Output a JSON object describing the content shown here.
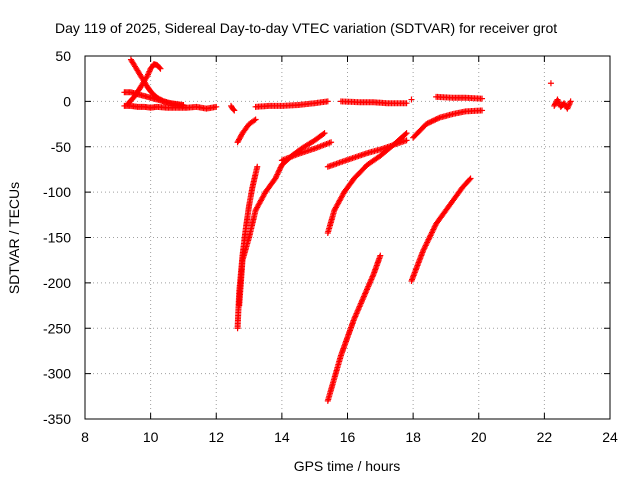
{
  "chart_data": {
    "type": "scatter",
    "title": "Day 119 of 2025, Sidereal Day-to-day VTEC variation (SDTVAR) for receiver grot",
    "xlabel": "GPS time / hours",
    "ylabel": "SDTVAR / TECUs",
    "xlim": [
      8,
      24
    ],
    "ylim": [
      -350,
      50
    ],
    "xticks": [
      "8",
      "10",
      "12",
      "14",
      "16",
      "18",
      "20",
      "22",
      "24"
    ],
    "yticks": [
      "50",
      "0",
      "-50",
      "-100",
      "-150",
      "-200",
      "-250",
      "-300",
      "-350"
    ],
    "grid": true,
    "marker": "+",
    "color": "#ff0000",
    "series": [
      {
        "x": [
          9.2,
          9.4,
          9.6,
          9.8,
          10.0,
          10.2,
          10.5,
          10.8,
          11.1,
          11.4,
          11.7,
          12.0
        ],
        "values": [
          -5,
          -5,
          -6,
          -6,
          -7,
          -6,
          -7,
          -7,
          -7,
          -6,
          -8,
          -6
        ]
      },
      {
        "x": [
          9.2,
          9.4,
          9.6,
          9.8,
          10.0,
          10.2,
          10.4,
          10.6,
          10.8,
          11.0
        ],
        "values": [
          10,
          10,
          8,
          6,
          4,
          2,
          0,
          -2,
          -4,
          -5
        ]
      },
      {
        "x": [
          9.4,
          9.5,
          9.6,
          9.7,
          9.8,
          9.9,
          10.0,
          10.1,
          10.2,
          10.4,
          10.6,
          10.8,
          11.0
        ],
        "values": [
          46,
          40,
          34,
          28,
          22,
          16,
          11,
          7,
          4,
          0,
          -2,
          -3,
          -4
        ]
      },
      {
        "x": [
          9.3,
          9.5,
          9.7,
          9.9,
          10.0,
          10.1,
          10.2,
          10.3
        ],
        "values": [
          -3,
          5,
          16,
          28,
          36,
          41,
          40,
          36
        ]
      },
      {
        "x": [
          12.45,
          12.5,
          12.55
        ],
        "values": [
          -5,
          -8,
          -10
        ]
      },
      {
        "x": [
          12.65,
          12.8,
          13.0,
          13.2
        ],
        "values": [
          -45,
          -35,
          -25,
          -20
        ]
      },
      {
        "x": [
          13.2,
          13.6,
          14.0,
          14.5,
          15.0,
          15.4
        ],
        "values": [
          -6,
          -5,
          -5,
          -4,
          -2,
          0
        ]
      },
      {
        "x": [
          15.8,
          16.4,
          16.8,
          17.2,
          17.8
        ],
        "values": [
          0,
          -1,
          -1,
          -2,
          -2
        ]
      },
      {
        "x": [
          17.95
        ],
        "values": [
          2
        ]
      },
      {
        "x": [
          18.7,
          19.2,
          19.6,
          20.1
        ],
        "values": [
          5,
          4,
          4,
          3
        ]
      },
      {
        "x": [
          22.2
        ],
        "values": [
          20
        ]
      },
      {
        "x": [
          22.3,
          22.4,
          22.5,
          22.6,
          22.7,
          22.8
        ],
        "values": [
          -5,
          2,
          -6,
          -2,
          -8,
          0
        ]
      },
      {
        "x": [
          12.65,
          12.7,
          12.8,
          12.9,
          13.0,
          13.1,
          13.25
        ],
        "values": [
          -250,
          -210,
          -170,
          -140,
          -115,
          -95,
          -72
        ]
      },
      {
        "x": [
          12.7,
          12.8,
          13.0,
          13.2,
          13.5,
          13.8,
          14.0,
          14.3,
          14.6,
          15.0,
          15.3
        ],
        "values": [
          -225,
          -175,
          -150,
          -120,
          -100,
          -85,
          -70,
          -60,
          -52,
          -43,
          -35
        ]
      },
      {
        "x": [
          14.0,
          14.5,
          15.0,
          15.5
        ],
        "values": [
          -65,
          -58,
          -52,
          -45
        ]
      },
      {
        "x": [
          15.4,
          15.6,
          15.9,
          16.2,
          16.6,
          17.0,
          17.4,
          17.8
        ],
        "values": [
          -145,
          -120,
          -100,
          -85,
          -70,
          -60,
          -48,
          -35
        ]
      },
      {
        "x": [
          15.4,
          15.8,
          16.2,
          16.6,
          17.0,
          17.4,
          17.8
        ],
        "values": [
          -72,
          -67,
          -62,
          -57,
          -53,
          -48,
          -43
        ]
      },
      {
        "x": [
          15.4,
          15.6,
          15.8,
          16.0,
          16.2,
          16.5,
          16.8,
          17.0
        ],
        "values": [
          -330,
          -305,
          -280,
          -260,
          -240,
          -215,
          -190,
          -170
        ]
      },
      {
        "x": [
          18.0,
          18.4,
          18.8,
          19.2,
          19.6,
          20.1
        ],
        "values": [
          -40,
          -25,
          -18,
          -14,
          -11,
          -10
        ]
      },
      {
        "x": [
          17.95,
          18.3,
          18.7,
          19.1,
          19.5,
          19.75
        ],
        "values": [
          -198,
          -165,
          -135,
          -115,
          -95,
          -85
        ]
      }
    ]
  }
}
